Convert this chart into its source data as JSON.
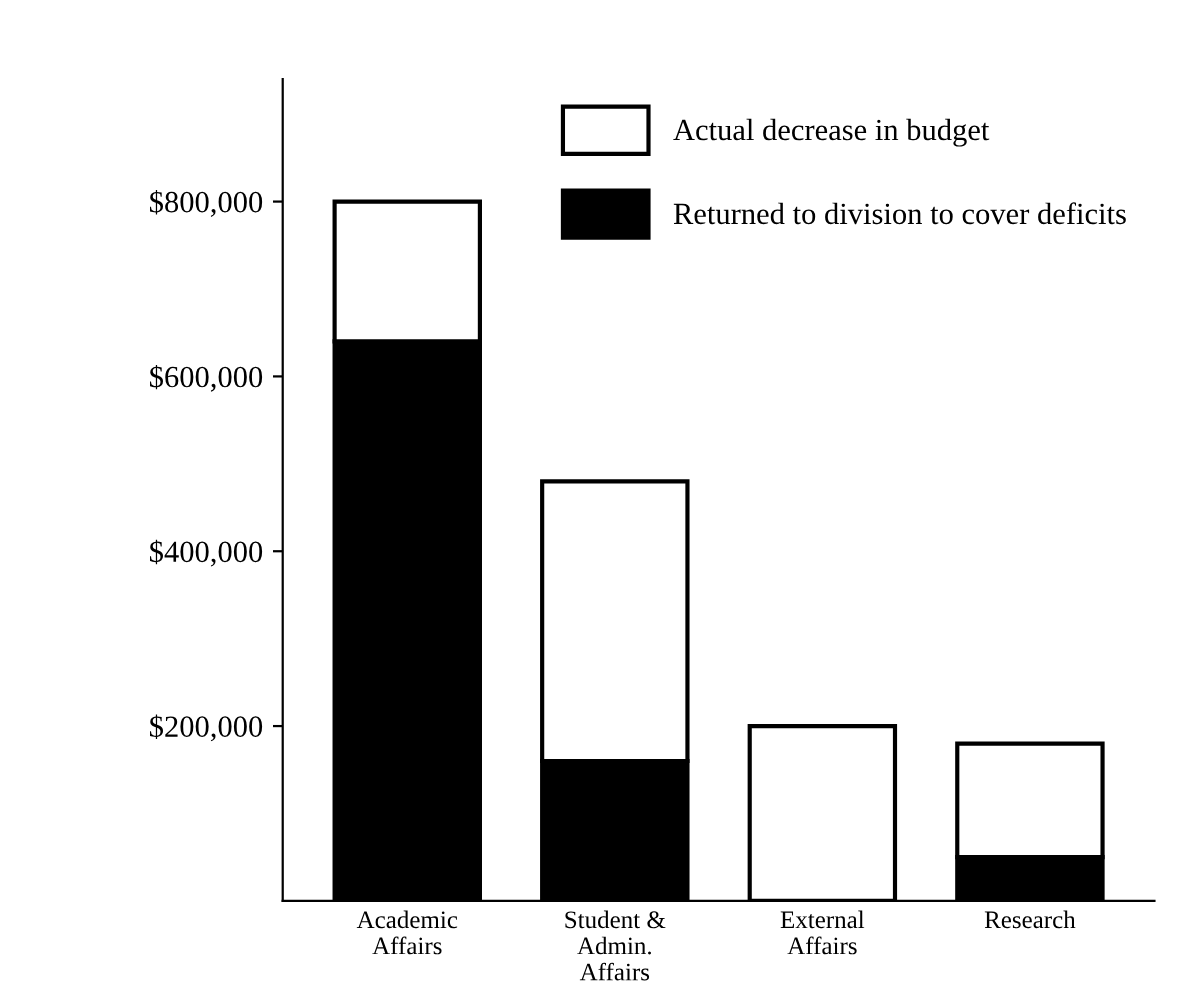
{
  "chart_data": {
    "type": "bar",
    "stacked": true,
    "categories": [
      "Academic\nAffairs",
      "Student &\nAdmin.\nAffairs",
      "External\nAffairs",
      "Research"
    ],
    "series": [
      {
        "name": "Returned to division to cover deficits",
        "color": "#000000",
        "values": [
          640000,
          160000,
          0,
          50000
        ]
      },
      {
        "name": "Actual decrease in budget",
        "color": "#ffffff",
        "values": [
          160000,
          320000,
          200000,
          130000
        ]
      }
    ],
    "ylim": [
      0,
      940000
    ],
    "yticks": [
      {
        "value": 200000,
        "label": "$200,000"
      },
      {
        "value": 400000,
        "label": "$400,000"
      },
      {
        "value": 600000,
        "label": "$600,000"
      },
      {
        "value": 800000,
        "label": "$800,000"
      }
    ],
    "grid": false,
    "legend": "top right"
  }
}
